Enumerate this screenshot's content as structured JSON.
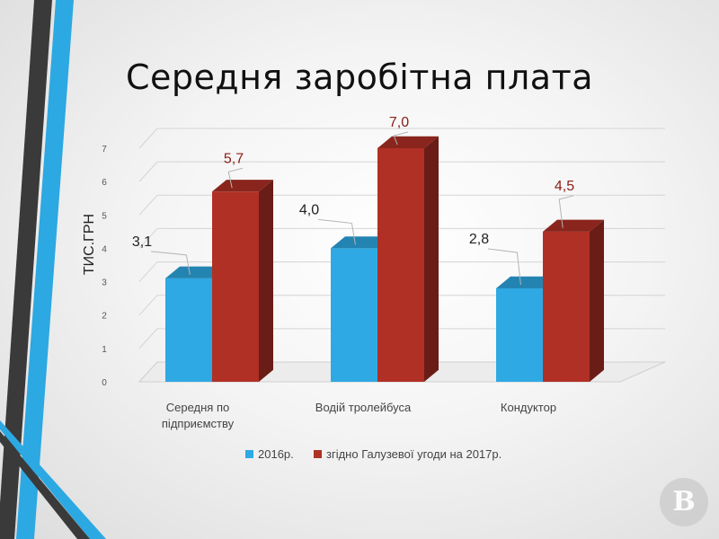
{
  "slide": {
    "title": "Середня заробітна плата",
    "accent_colors": {
      "blue": "#2ca8e2",
      "dark": "#3a3a3a"
    },
    "watermark_letter": "В"
  },
  "chart_data": {
    "type": "bar",
    "title": "Середня заробітна плата",
    "xlabel": "",
    "ylabel": "ТИС.ГРН",
    "ylim": [
      0,
      7
    ],
    "yticks": [
      0,
      1,
      2,
      3,
      4,
      5,
      6,
      7
    ],
    "grid": true,
    "legend_position": "bottom",
    "categories": [
      [
        "Середня по",
        "підприємству"
      ],
      [
        "Водій тролейбуса"
      ],
      [
        "Кондуктор"
      ]
    ],
    "series": [
      {
        "name": "2016р.",
        "color": "#2ea9e3",
        "values": [
          3.1,
          4.0,
          2.8
        ],
        "labels": [
          "3,1",
          "4,0",
          "2,8"
        ],
        "label_color": "#222222"
      },
      {
        "name": "згідно Галузевої угоди на 2017р.",
        "color": "#b03025",
        "values": [
          5.7,
          7.0,
          4.5
        ],
        "labels": [
          "5,7",
          "7,0",
          "4,5"
        ],
        "label_color": "#8a1e16"
      }
    ]
  }
}
